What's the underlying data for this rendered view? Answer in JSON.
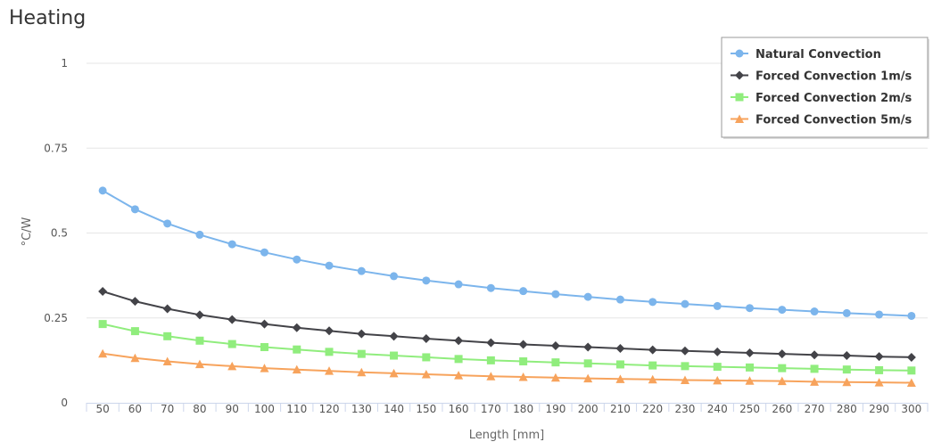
{
  "chart_data": {
    "type": "line",
    "title": "Heating",
    "xlabel": "Length [mm]",
    "ylabel": "°C/W",
    "ylim": [
      0,
      1
    ],
    "yticks": [
      "0",
      "0.25",
      "0.5",
      "0.75",
      "1"
    ],
    "x": [
      50,
      60,
      70,
      80,
      90,
      100,
      110,
      120,
      130,
      140,
      150,
      160,
      170,
      180,
      190,
      200,
      210,
      220,
      230,
      240,
      250,
      260,
      270,
      280,
      290,
      300
    ],
    "grid": true,
    "legend_position": "top-right",
    "series": [
      {
        "name": "Natural Convection",
        "color": "#7cb5ec",
        "marker": "circle",
        "values": [
          0.625,
          0.57,
          0.528,
          0.495,
          0.467,
          0.443,
          0.422,
          0.404,
          0.388,
          0.373,
          0.36,
          0.349,
          0.338,
          0.329,
          0.32,
          0.312,
          0.304,
          0.297,
          0.291,
          0.285,
          0.279,
          0.274,
          0.269,
          0.264,
          0.26,
          0.256
        ]
      },
      {
        "name": "Forced Convection 1m/s",
        "color": "#434348",
        "marker": "diamond",
        "values": [
          0.328,
          0.299,
          0.277,
          0.259,
          0.245,
          0.232,
          0.221,
          0.212,
          0.203,
          0.196,
          0.189,
          0.183,
          0.177,
          0.172,
          0.168,
          0.164,
          0.16,
          0.156,
          0.153,
          0.15,
          0.147,
          0.144,
          0.141,
          0.139,
          0.136,
          0.134
        ]
      },
      {
        "name": "Forced Convection 2m/s",
        "color": "#90ed7d",
        "marker": "square",
        "values": [
          0.232,
          0.211,
          0.196,
          0.183,
          0.173,
          0.164,
          0.157,
          0.15,
          0.144,
          0.139,
          0.134,
          0.129,
          0.125,
          0.122,
          0.119,
          0.116,
          0.113,
          0.11,
          0.108,
          0.106,
          0.104,
          0.102,
          0.1,
          0.098,
          0.096,
          0.095
        ]
      },
      {
        "name": "Forced Convection 5m/s",
        "color": "#f7a35c",
        "marker": "triangle",
        "values": [
          0.145,
          0.132,
          0.122,
          0.114,
          0.108,
          0.102,
          0.098,
          0.094,
          0.09,
          0.087,
          0.084,
          0.081,
          0.078,
          0.076,
          0.074,
          0.072,
          0.07,
          0.069,
          0.067,
          0.066,
          0.065,
          0.064,
          0.062,
          0.061,
          0.06,
          0.059
        ]
      }
    ]
  }
}
